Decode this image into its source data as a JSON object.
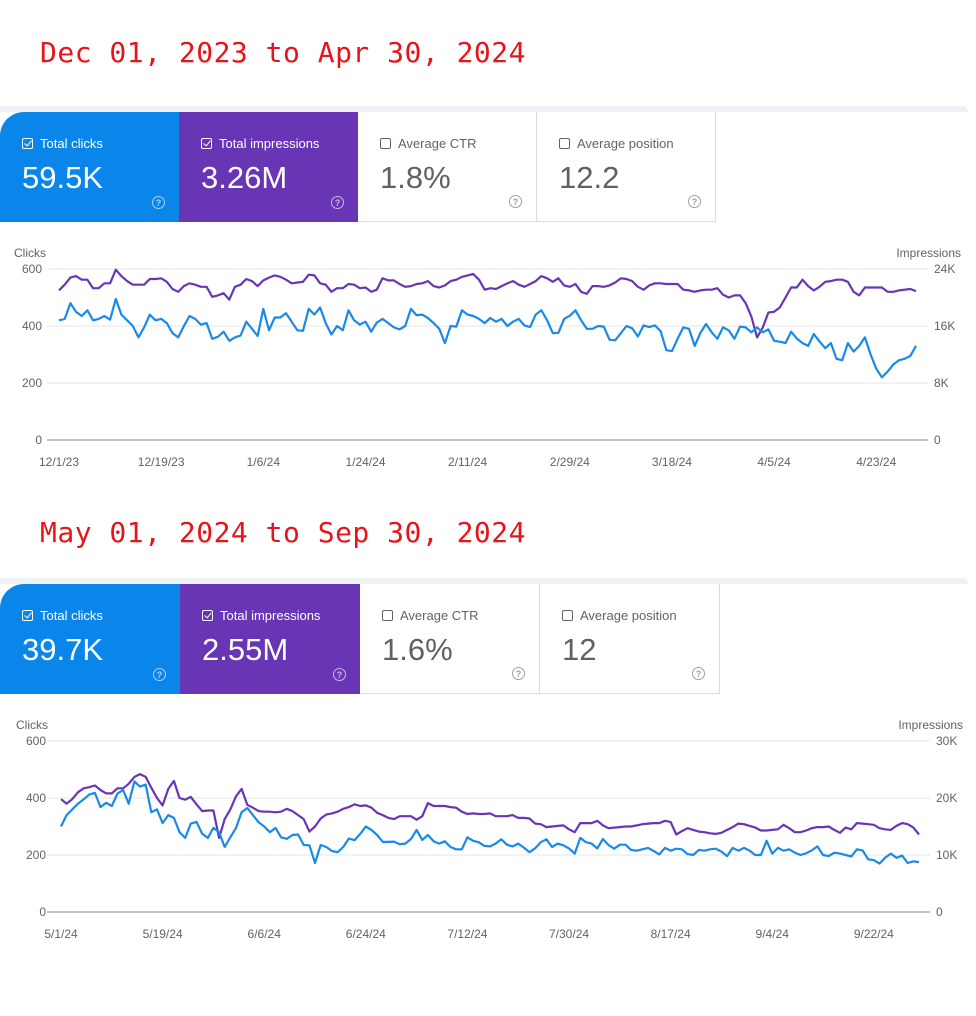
{
  "sections": [
    {
      "range_title": "Dec 01, 2023 to Apr 30, 2024",
      "cards": [
        {
          "label": "Total clicks",
          "value": "59.5K",
          "checked": true,
          "help_icon": "help-circle-icon"
        },
        {
          "label": "Total impressions",
          "value": "3.26M",
          "checked": true,
          "help_icon": "help-circle-icon"
        },
        {
          "label": "Average CTR",
          "value": "1.8%",
          "checked": false,
          "help_icon": "help-circle-icon"
        },
        {
          "label": "Average position",
          "value": "12.2",
          "checked": false,
          "help_icon": "help-circle-icon"
        }
      ]
    },
    {
      "range_title": "May 01, 2024 to Sep 30, 2024",
      "cards": [
        {
          "label": "Total clicks",
          "value": "39.7K",
          "checked": true,
          "help_icon": "help-circle-icon"
        },
        {
          "label": "Total impressions",
          "value": "2.55M",
          "checked": true,
          "help_icon": "help-circle-icon"
        },
        {
          "label": "Average CTR",
          "value": "1.6%",
          "checked": false,
          "help_icon": "help-circle-icon"
        },
        {
          "label": "Average position",
          "value": "12",
          "checked": false,
          "help_icon": "help-circle-icon"
        }
      ]
    }
  ],
  "colors": {
    "clicks": "#1a8ae8",
    "impressions": "#6a35b4",
    "title": "#e8141c"
  },
  "chart_data": [
    {
      "type": "line",
      "title": "",
      "xlabel": "",
      "ylabel": "Clicks",
      "y2label": "Impressions",
      "ylim": [
        0,
        600
      ],
      "y2lim": [
        0,
        24000
      ],
      "yticks": [
        "0",
        "200",
        "400",
        "600"
      ],
      "y2ticks": [
        "0",
        "8K",
        "16K",
        "24K"
      ],
      "xticks": [
        "12/1/23",
        "12/19/23",
        "1/6/24",
        "1/24/24",
        "2/11/24",
        "2/29/24",
        "3/18/24",
        "4/5/24",
        "4/23/24"
      ],
      "grid": true,
      "days": 152,
      "series": [
        {
          "name": "Clicks",
          "axis": "left",
          "values": [
            420,
            425,
            480,
            450,
            435,
            455,
            420,
            425,
            435,
            422,
            495,
            440,
            420,
            400,
            360,
            395,
            440,
            420,
            425,
            410,
            375,
            360,
            400,
            435,
            425,
            405,
            410,
            355,
            362,
            380,
            348,
            360,
            367,
            415,
            390,
            365,
            460,
            385,
            430,
            430,
            445,
            415,
            385,
            383,
            460,
            440,
            465,
            410,
            370,
            400,
            385,
            455,
            420,
            405,
            415,
            380,
            412,
            425,
            410,
            395,
            388,
            400,
            460,
            438,
            440,
            428,
            410,
            390,
            340,
            400,
            398,
            455,
            440,
            435,
            425,
            410,
            428,
            415,
            425,
            400,
            415,
            425,
            402,
            396,
            440,
            455,
            420,
            375,
            376,
            425,
            436,
            455,
            420,
            390,
            390,
            400,
            398,
            352,
            350,
            375,
            400,
            392,
            363,
            402,
            396,
            402,
            382,
            315,
            312,
            355,
            395,
            390,
            330,
            375,
            407,
            378,
            355,
            395,
            385,
            355,
            398,
            395,
            378,
            395,
            378,
            388,
            348,
            345,
            340,
            380,
            356,
            340,
            330,
            372,
            346,
            322,
            340,
            285,
            280,
            340,
            310,
            330,
            360,
            300,
            250,
            220,
            240,
            265,
            280,
            285,
            295,
            330
          ],
          "sample_note": "daily clicks"
        },
        {
          "name": "Impressions",
          "axis": "right",
          "values": [
            21000,
            21800,
            22800,
            23000,
            22500,
            22500,
            21300,
            21300,
            22000,
            22000,
            23900,
            23000,
            22300,
            21800,
            21800,
            21800,
            22600,
            22600,
            22700,
            22200,
            21200,
            20800,
            21600,
            22000,
            21800,
            21500,
            21500,
            20100,
            20300,
            20600,
            19700,
            21500,
            21800,
            22600,
            22300,
            21600,
            22400,
            22800,
            23100,
            22900,
            22500,
            22000,
            22100,
            22200,
            23200,
            23100,
            22000,
            21800,
            20800,
            21300,
            21300,
            21900,
            21800,
            21300,
            21400,
            20800,
            21100,
            22700,
            22400,
            22400,
            21900,
            21500,
            21600,
            21900,
            22000,
            22300,
            21600,
            21400,
            21700,
            22300,
            22500,
            22900,
            23100,
            23300,
            22500,
            21100,
            21300,
            21200,
            21600,
            22000,
            22300,
            21800,
            21500,
            21900,
            22300,
            23000,
            22700,
            22200,
            22700,
            21700,
            21500,
            21900,
            20800,
            20500,
            21600,
            21600,
            21500,
            21700,
            22100,
            22700,
            22600,
            22300,
            21500,
            21100,
            21700,
            22000,
            22000,
            21900,
            21900,
            21900,
            21100,
            21000,
            20800,
            21000,
            21100,
            21100,
            21300,
            20400,
            20000,
            20300,
            20300,
            19200,
            17300,
            14400,
            15800,
            17900,
            18000,
            18600,
            20000,
            21400,
            21400,
            22500,
            21600,
            21000,
            21500,
            22200,
            22300,
            22500,
            22500,
            22200,
            20800,
            20300,
            21400,
            21400,
            21400,
            21400,
            20800,
            20800,
            21000,
            21100,
            21200,
            20900
          ],
          "sample_note": "daily impressions"
        }
      ]
    },
    {
      "type": "line",
      "title": "",
      "xlabel": "",
      "ylabel": "Clicks",
      "y2label": "Impressions",
      "ylim": [
        0,
        600
      ],
      "y2lim": [
        0,
        30000
      ],
      "yticks": [
        "0",
        "200",
        "400",
        "600"
      ],
      "y2ticks": [
        "0",
        "10K",
        "20K",
        "30K"
      ],
      "xticks": [
        "5/1/24",
        "5/19/24",
        "6/6/24",
        "6/24/24",
        "7/12/24",
        "7/30/24",
        "8/17/24",
        "9/4/24",
        "9/22/24"
      ],
      "grid": true,
      "days": 153,
      "series": [
        {
          "name": "Clicks",
          "axis": "left",
          "values": [
            300,
            340,
            360,
            380,
            395,
            412,
            418,
            368,
            383,
            372,
            415,
            428,
            380,
            458,
            440,
            447,
            350,
            360,
            312,
            340,
            330,
            280,
            260,
            310,
            316,
            275,
            260,
            295,
            280,
            228,
            262,
            295,
            350,
            365,
            340,
            315,
            300,
            280,
            295,
            262,
            257,
            270,
            272,
            235,
            234,
            172,
            235,
            228,
            214,
            210,
            228,
            258,
            252,
            274,
            300,
            288,
            270,
            246,
            246,
            247,
            238,
            240,
            256,
            288,
            253,
            270,
            248,
            240,
            248,
            228,
            220,
            220,
            262,
            250,
            245,
            232,
            230,
            240,
            255,
            236,
            230,
            240,
            226,
            210,
            224,
            245,
            255,
            228,
            240,
            234,
            223,
            205,
            260,
            245,
            240,
            223,
            256,
            235,
            222,
            236,
            236,
            218,
            215,
            220,
            225,
            214,
            202,
            225,
            215,
            222,
            220,
            203,
            200,
            218,
            215,
            220,
            222,
            212,
            196,
            225,
            215,
            225,
            215,
            200,
            200,
            250,
            205,
            225,
            215,
            220,
            208,
            200,
            206,
            216,
            230,
            200,
            196,
            208,
            205,
            200,
            195,
            220,
            216,
            185,
            182,
            170,
            190,
            205,
            190,
            198,
            172,
            178,
            175
          ],
          "sample_note": "daily clicks"
        },
        {
          "name": "Impressions",
          "axis": "right",
          "values": [
            19800,
            19000,
            19800,
            21000,
            21700,
            21900,
            22200,
            21400,
            20800,
            20800,
            21700,
            21700,
            22500,
            23700,
            24200,
            23700,
            21800,
            20000,
            18700,
            21600,
            23000,
            20000,
            19700,
            20200,
            18900,
            17700,
            17800,
            17800,
            13000,
            16300,
            18000,
            20300,
            21600,
            18800,
            18300,
            17700,
            17600,
            17600,
            17500,
            17600,
            18100,
            17700,
            17000,
            16300,
            14100,
            15000,
            16400,
            17100,
            17300,
            17600,
            18100,
            18400,
            18900,
            18600,
            18700,
            18300,
            17400,
            17000,
            16500,
            16300,
            16800,
            16800,
            16800,
            16200,
            16800,
            19100,
            18600,
            18600,
            18600,
            18400,
            18300,
            17600,
            17200,
            17300,
            17200,
            17200,
            17300,
            16800,
            16800,
            16800,
            17000,
            16500,
            16500,
            16400,
            15500,
            15400,
            14900,
            15000,
            15100,
            15200,
            14500,
            14000,
            15600,
            15600,
            15600,
            16000,
            15200,
            14700,
            14800,
            14900,
            15000,
            15000,
            15200,
            15400,
            15500,
            15600,
            15600,
            16000,
            15800,
            13600,
            14200,
            14700,
            14400,
            14100,
            14000,
            13800,
            13700,
            13900,
            14400,
            14900,
            15500,
            15400,
            15100,
            14800,
            14300,
            14300,
            14400,
            14500,
            15300,
            14700,
            14000,
            14000,
            14300,
            14700,
            14900,
            14900,
            15000,
            14400,
            13900,
            14800,
            14500,
            15600,
            15500,
            15400,
            15300,
            14700,
            14500,
            14400,
            15100,
            15600,
            15400,
            14800,
            13600
          ],
          "sample_note": "daily impressions"
        }
      ]
    }
  ]
}
